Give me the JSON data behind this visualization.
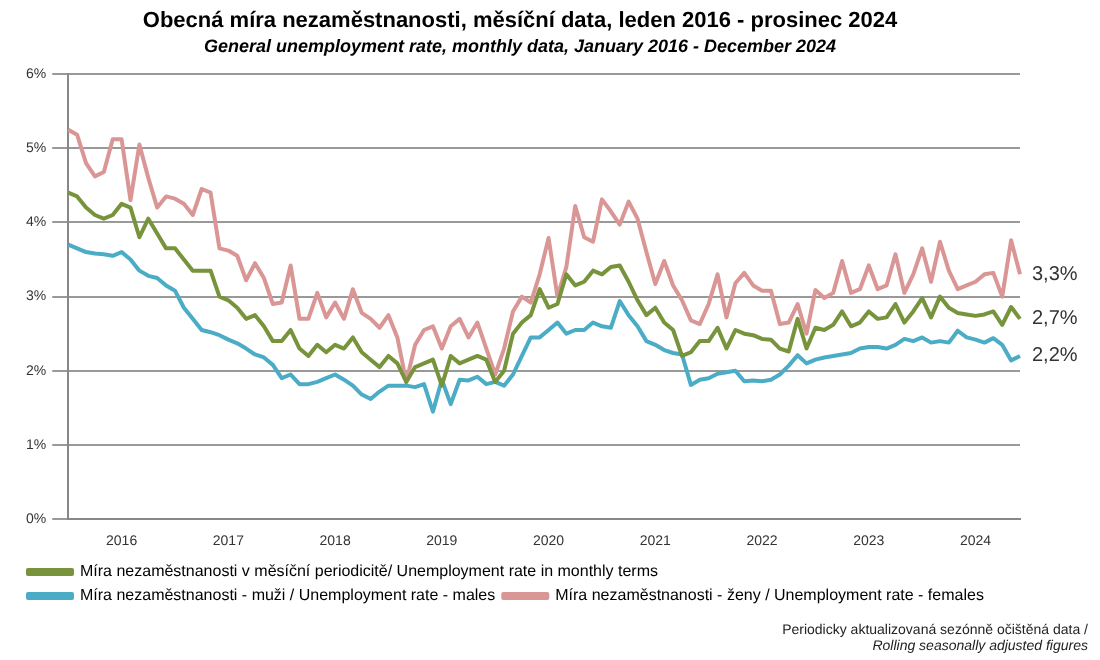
{
  "chart_data": {
    "type": "line",
    "title": "Obecná míra nezaměstnanosti, měsíční data, leden 2016 - prosinec 2024",
    "subtitle": "General unemployment rate, monthly data, January 2016 - December 2024",
    "categories": [
      null,
      null,
      null,
      null,
      null,
      null,
      "2016",
      null,
      null,
      null,
      null,
      null,
      null,
      null,
      null,
      null,
      null,
      null,
      "2017",
      null,
      null,
      null,
      null,
      null,
      null,
      null,
      null,
      null,
      null,
      null,
      "2018",
      null,
      null,
      null,
      null,
      null,
      null,
      null,
      null,
      null,
      null,
      null,
      "2019",
      null,
      null,
      null,
      null,
      null,
      null,
      null,
      null,
      null,
      null,
      null,
      "2020",
      null,
      null,
      null,
      null,
      null,
      null,
      null,
      null,
      null,
      null,
      null,
      "2021",
      null,
      null,
      null,
      null,
      null,
      null,
      null,
      null,
      null,
      null,
      null,
      "2022",
      null,
      null,
      null,
      null,
      null,
      null,
      null,
      null,
      null,
      null,
      null,
      "2023",
      null,
      null,
      null,
      null,
      null,
      null,
      null,
      null,
      null,
      null,
      null,
      "2024",
      null,
      null,
      null,
      null,
      null
    ],
    "series": [
      {
        "name": "Míra nezaměstnanosti v měsíční periodicitě/ Unemployment rate in monthly terms",
        "color": "#77933c",
        "values": [
          4.4,
          4.35,
          4.2,
          4.1,
          4.05,
          4.1,
          4.25,
          4.2,
          3.8,
          4.05,
          3.85,
          3.65,
          3.65,
          3.5,
          3.35,
          3.35,
          3.35,
          3.0,
          2.95,
          2.85,
          2.7,
          2.75,
          2.6,
          2.4,
          2.4,
          2.55,
          2.3,
          2.2,
          2.35,
          2.25,
          2.35,
          2.3,
          2.45,
          2.25,
          2.15,
          2.05,
          2.2,
          2.1,
          1.85,
          2.05,
          2.1,
          2.15,
          1.8,
          2.2,
          2.1,
          2.15,
          2.2,
          2.15,
          1.85,
          2.0,
          2.5,
          2.65,
          2.75,
          3.1,
          2.85,
          2.9,
          3.3,
          3.15,
          3.2,
          3.35,
          3.3,
          3.4,
          3.42,
          3.2,
          2.95,
          2.75,
          2.85,
          2.65,
          2.55,
          2.2,
          2.25,
          2.4,
          2.4,
          2.58,
          2.3,
          2.55,
          2.5,
          2.48,
          2.43,
          2.42,
          2.3,
          2.26,
          2.7,
          2.3,
          2.58,
          2.55,
          2.62,
          2.8,
          2.6,
          2.65,
          2.8,
          2.7,
          2.72,
          2.9,
          2.65,
          2.8,
          2.98,
          2.72,
          3.0,
          2.85,
          2.78,
          2.76,
          2.74,
          2.76,
          2.8,
          2.62,
          2.86,
          2.7
        ],
        "value_labels": [
          null,
          null,
          null,
          null,
          null,
          null,
          null,
          null,
          null,
          null,
          null,
          null,
          null,
          null,
          null,
          null,
          null,
          null,
          null,
          null,
          null,
          null,
          null,
          null,
          null,
          null,
          null,
          null,
          null,
          null,
          null,
          null,
          null,
          null,
          null,
          null,
          null,
          null,
          null,
          null,
          null,
          null,
          null,
          null,
          null,
          null,
          null,
          null,
          null,
          null,
          null,
          null,
          null,
          null,
          null,
          null,
          null,
          null,
          null,
          null,
          null,
          null,
          null,
          null,
          null,
          null,
          null,
          null,
          null,
          null,
          null,
          null,
          null,
          null,
          null,
          null,
          null,
          null,
          null,
          null,
          null,
          null,
          null,
          null,
          null,
          null,
          null,
          null,
          null,
          null,
          null,
          null,
          null,
          null,
          null,
          null,
          null,
          null,
          null,
          null,
          null,
          null,
          null,
          null,
          null,
          null,
          null,
          "2,7%"
        ]
      },
      {
        "name": "Míra nezaměstnanosti - muži / Unemployment rate - males",
        "color": "#4bacc6",
        "values": [
          3.7,
          3.65,
          3.6,
          3.58,
          3.57,
          3.55,
          3.6,
          3.5,
          3.35,
          3.28,
          3.25,
          3.15,
          3.08,
          2.85,
          2.7,
          2.55,
          2.52,
          2.48,
          2.42,
          2.37,
          2.3,
          2.22,
          2.18,
          2.08,
          1.9,
          1.95,
          1.82,
          1.82,
          1.85,
          1.9,
          1.95,
          1.88,
          1.8,
          1.68,
          1.62,
          1.72,
          1.8,
          1.8,
          1.8,
          1.78,
          1.82,
          1.45,
          1.88,
          1.55,
          1.88,
          1.87,
          1.92,
          1.82,
          1.85,
          1.8,
          1.95,
          2.2,
          2.45,
          2.45,
          2.55,
          2.65,
          2.5,
          2.55,
          2.55,
          2.65,
          2.6,
          2.58,
          2.94,
          2.75,
          2.6,
          2.4,
          2.35,
          2.28,
          2.24,
          2.22,
          1.81,
          1.88,
          1.9,
          1.96,
          1.98,
          2.0,
          1.86,
          1.87,
          1.86,
          1.88,
          1.95,
          2.07,
          2.21,
          2.1,
          2.15,
          2.18,
          2.2,
          2.22,
          2.24,
          2.3,
          2.32,
          2.32,
          2.3,
          2.35,
          2.43,
          2.4,
          2.45,
          2.38,
          2.4,
          2.38,
          2.54,
          2.45,
          2.42,
          2.38,
          2.44,
          2.35,
          2.14,
          2.2
        ],
        "value_labels": [
          null,
          null,
          null,
          null,
          null,
          null,
          null,
          null,
          null,
          null,
          null,
          null,
          null,
          null,
          null,
          null,
          null,
          null,
          null,
          null,
          null,
          null,
          null,
          null,
          null,
          null,
          null,
          null,
          null,
          null,
          null,
          null,
          null,
          null,
          null,
          null,
          null,
          null,
          null,
          null,
          null,
          null,
          null,
          null,
          null,
          null,
          null,
          null,
          null,
          null,
          null,
          null,
          null,
          null,
          null,
          null,
          null,
          null,
          null,
          null,
          null,
          null,
          null,
          null,
          null,
          null,
          null,
          null,
          null,
          null,
          null,
          null,
          null,
          null,
          null,
          null,
          null,
          null,
          null,
          null,
          null,
          null,
          null,
          null,
          null,
          null,
          null,
          null,
          null,
          null,
          null,
          null,
          null,
          null,
          null,
          null,
          null,
          null,
          null,
          null,
          null,
          null,
          null,
          null,
          null,
          null,
          null,
          "2,2%"
        ]
      },
      {
        "name": "Míra nezaměstnanosti - ženy / Unemployment rate - females",
        "color": "#d99694",
        "values": [
          5.25,
          5.18,
          4.8,
          4.62,
          4.68,
          5.12,
          5.12,
          4.3,
          5.05,
          4.6,
          4.2,
          4.35,
          4.32,
          4.25,
          4.1,
          4.45,
          4.4,
          3.65,
          3.62,
          3.55,
          3.22,
          3.45,
          3.25,
          2.9,
          2.92,
          3.42,
          2.7,
          2.7,
          3.05,
          2.72,
          2.92,
          2.7,
          3.1,
          2.78,
          2.7,
          2.58,
          2.75,
          2.45,
          1.85,
          2.35,
          2.55,
          2.6,
          2.3,
          2.6,
          2.7,
          2.45,
          2.65,
          2.3,
          1.95,
          2.3,
          2.8,
          3.0,
          2.92,
          3.3,
          3.79,
          3.0,
          3.4,
          4.22,
          3.8,
          3.74,
          4.31,
          4.15,
          3.97,
          4.28,
          4.05,
          3.6,
          3.17,
          3.48,
          3.15,
          2.95,
          2.68,
          2.63,
          2.9,
          3.3,
          2.72,
          3.18,
          3.32,
          3.15,
          3.08,
          3.08,
          2.63,
          2.65,
          2.9,
          2.5,
          3.09,
          2.98,
          3.05,
          3.48,
          3.05,
          3.1,
          3.42,
          3.1,
          3.15,
          3.57,
          3.05,
          3.3,
          3.65,
          3.2,
          3.74,
          3.35,
          3.1,
          3.15,
          3.2,
          3.3,
          3.32,
          3.0,
          3.76,
          3.3
        ],
        "value_labels": [
          null,
          null,
          null,
          null,
          null,
          null,
          null,
          null,
          null,
          null,
          null,
          null,
          null,
          null,
          null,
          null,
          null,
          null,
          null,
          null,
          null,
          null,
          null,
          null,
          null,
          null,
          null,
          null,
          null,
          null,
          null,
          null,
          null,
          null,
          null,
          null,
          null,
          null,
          null,
          null,
          null,
          null,
          null,
          null,
          null,
          null,
          null,
          null,
          null,
          null,
          null,
          null,
          null,
          null,
          null,
          null,
          null,
          null,
          null,
          null,
          null,
          null,
          null,
          null,
          null,
          null,
          null,
          null,
          null,
          null,
          null,
          null,
          null,
          null,
          null,
          null,
          null,
          null,
          null,
          null,
          null,
          null,
          null,
          null,
          null,
          null,
          null,
          null,
          null,
          null,
          null,
          null,
          null,
          null,
          null,
          null,
          null,
          null,
          null,
          null,
          null,
          null,
          null,
          null,
          null,
          null,
          null,
          "3,3%"
        ]
      }
    ],
    "ylim": [
      0,
      6
    ],
    "yticks": [
      {
        "value": 0,
        "label": "0%"
      },
      {
        "value": 1,
        "label": "1%"
      },
      {
        "value": 2,
        "label": "2%"
      },
      {
        "value": 3,
        "label": "3%"
      },
      {
        "value": 4,
        "label": "4%"
      },
      {
        "value": 5,
        "label": "5%"
      },
      {
        "value": 6,
        "label": "6%"
      }
    ],
    "grid": "y",
    "legend": "bottom",
    "marker": "none",
    "line_style": "solid",
    "annotations": [
      "Periodicky aktualizovaná sezónně očištěná data /",
      "Rolling seasonally adjusted figures"
    ]
  }
}
